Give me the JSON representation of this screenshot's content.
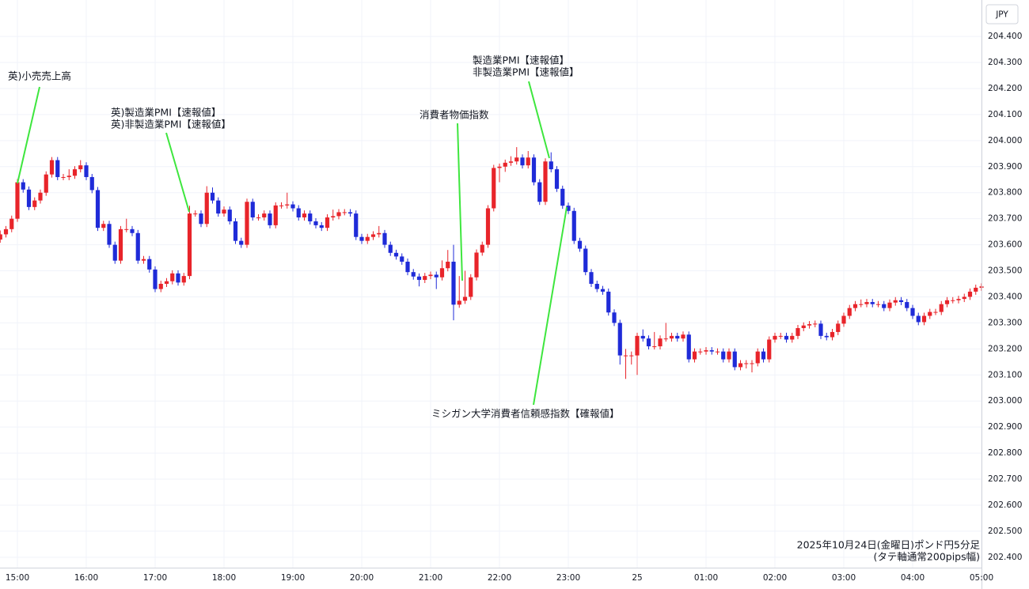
{
  "chart_data": {
    "type": "candlestick",
    "currency": "JPY",
    "note": [
      "2025年10月24日(金曜日)ポンド円5分足",
      "(タテ軸通常200pips幅)"
    ],
    "annotations": [
      [
        "英)小売売上高"
      ],
      [
        "英)製造業PMI【速報値】",
        "英)非製造業PMI【速報値】"
      ],
      [
        "消費者物価指数"
      ],
      [
        "製造業PMI【速報値】",
        "非製造業PMI【速報値】"
      ],
      [
        "ミシガン大学消費者信頼感指数【確報値】"
      ]
    ],
    "up_color": "#e8242a",
    "down_color": "#1f2bd8",
    "grid": true,
    "ylim": [
      202.36,
      204.54
    ],
    "yticks": [
      {
        "value": 202.4,
        "label": "202.400"
      },
      {
        "value": 202.5,
        "label": "202.500"
      },
      {
        "value": 202.6,
        "label": "202.600"
      },
      {
        "value": 202.7,
        "label": "202.700"
      },
      {
        "value": 202.8,
        "label": "202.800"
      },
      {
        "value": 202.9,
        "label": "202.900"
      },
      {
        "value": 203.0,
        "label": "203.000"
      },
      {
        "value": 203.1,
        "label": "203.100"
      },
      {
        "value": 203.2,
        "label": "203.200"
      },
      {
        "value": 203.3,
        "label": "203.300"
      },
      {
        "value": 203.4,
        "label": "203.400"
      },
      {
        "value": 203.5,
        "label": "203.500"
      },
      {
        "value": 203.6,
        "label": "203.600"
      },
      {
        "value": 203.7,
        "label": "203.700"
      },
      {
        "value": 203.8,
        "label": "203.800"
      },
      {
        "value": 203.9,
        "label": "203.900"
      },
      {
        "value": 204.0,
        "label": "204.000"
      },
      {
        "value": 204.1,
        "label": "204.100"
      },
      {
        "value": 204.2,
        "label": "204.200"
      },
      {
        "value": 204.3,
        "label": "204.300"
      },
      {
        "value": 204.4,
        "label": "204.400"
      }
    ],
    "categories": [
      null,
      null,
      null,
      "15:00",
      null,
      null,
      null,
      null,
      null,
      null,
      null,
      null,
      null,
      null,
      null,
      "16:00",
      null,
      null,
      null,
      null,
      null,
      null,
      null,
      null,
      null,
      null,
      null,
      "17:00",
      null,
      null,
      null,
      null,
      null,
      null,
      null,
      null,
      null,
      null,
      null,
      "18:00",
      null,
      null,
      null,
      null,
      null,
      null,
      null,
      null,
      null,
      null,
      null,
      "19:00",
      null,
      null,
      null,
      null,
      null,
      null,
      null,
      null,
      null,
      null,
      null,
      "20:00",
      null,
      null,
      null,
      null,
      null,
      null,
      null,
      null,
      null,
      null,
      null,
      "21:00",
      null,
      null,
      null,
      null,
      null,
      null,
      null,
      null,
      null,
      null,
      null,
      "22:00",
      null,
      null,
      null,
      null,
      null,
      null,
      null,
      null,
      null,
      null,
      null,
      "23:00",
      null,
      null,
      null,
      null,
      null,
      null,
      null,
      null,
      null,
      null,
      null,
      "25",
      null,
      null,
      null,
      null,
      null,
      null,
      null,
      null,
      null,
      null,
      null,
      "01:00",
      null,
      null,
      null,
      null,
      null,
      null,
      null,
      null,
      null,
      null,
      null,
      "02:00",
      null,
      null,
      null,
      null,
      null,
      null,
      null,
      null,
      null,
      null,
      null,
      "03:00",
      null,
      null,
      null,
      null,
      null,
      null,
      null,
      null,
      null,
      null,
      null,
      "04:00",
      null,
      null,
      null,
      null,
      null,
      null,
      null,
      null,
      null,
      null,
      null,
      "05:00"
    ],
    "values": [
      [
        203.62,
        203.655,
        203.608,
        203.64
      ],
      [
        203.64,
        203.672,
        203.628,
        203.66
      ],
      [
        203.66,
        203.712,
        203.648,
        203.7
      ],
      [
        203.7,
        203.852,
        203.688,
        203.84
      ],
      [
        203.84,
        203.852,
        203.8,
        203.812
      ],
      [
        203.812,
        203.824,
        203.733,
        203.745
      ],
      [
        203.745,
        203.782,
        203.733,
        203.77
      ],
      [
        203.77,
        203.812,
        203.758,
        203.8
      ],
      [
        203.8,
        203.882,
        203.788,
        203.87
      ],
      [
        203.87,
        203.937,
        203.858,
        203.925
      ],
      [
        203.925,
        203.937,
        203.848,
        203.86
      ],
      [
        203.86,
        203.872,
        203.848,
        203.86
      ],
      [
        203.86,
        203.89,
        203.848,
        203.865
      ],
      [
        203.865,
        203.902,
        203.853,
        203.89
      ],
      [
        203.89,
        203.925,
        203.878,
        203.905
      ],
      [
        203.905,
        203.917,
        203.848,
        203.86
      ],
      [
        203.86,
        203.872,
        203.798,
        203.81
      ],
      [
        203.81,
        203.822,
        203.653,
        203.665
      ],
      [
        203.665,
        203.692,
        203.653,
        203.68
      ],
      [
        203.68,
        203.692,
        203.588,
        203.6
      ],
      [
        203.6,
        203.612,
        203.527,
        203.539
      ],
      [
        203.539,
        203.672,
        203.527,
        203.66
      ],
      [
        203.66,
        203.7,
        203.648,
        203.66
      ],
      [
        203.66,
        203.672,
        203.633,
        203.645
      ],
      [
        203.645,
        203.657,
        203.527,
        203.539
      ],
      [
        203.539,
        203.557,
        203.527,
        203.545
      ],
      [
        203.545,
        203.557,
        203.493,
        203.505
      ],
      [
        203.505,
        203.517,
        203.418,
        203.43
      ],
      [
        203.43,
        203.462,
        203.418,
        203.45
      ],
      [
        203.45,
        203.472,
        203.438,
        203.46
      ],
      [
        203.46,
        203.502,
        203.448,
        203.49
      ],
      [
        203.49,
        203.502,
        203.443,
        203.455
      ],
      [
        203.455,
        203.492,
        203.443,
        203.48
      ],
      [
        203.48,
        203.75,
        203.468,
        203.72
      ],
      [
        203.72,
        203.732,
        203.708,
        203.72
      ],
      [
        203.72,
        203.732,
        203.668,
        203.68
      ],
      [
        203.68,
        203.825,
        203.668,
        203.8
      ],
      [
        203.8,
        203.82,
        203.758,
        203.77
      ],
      [
        203.77,
        203.782,
        203.708,
        203.72
      ],
      [
        203.72,
        203.747,
        203.708,
        203.735
      ],
      [
        203.735,
        203.747,
        203.678,
        203.69
      ],
      [
        203.69,
        203.702,
        203.603,
        203.615
      ],
      [
        203.615,
        203.627,
        203.588,
        203.6
      ],
      [
        203.6,
        203.777,
        203.588,
        203.765
      ],
      [
        203.765,
        203.777,
        203.693,
        203.705
      ],
      [
        203.705,
        203.717,
        203.693,
        203.705
      ],
      [
        203.705,
        203.732,
        203.693,
        203.72
      ],
      [
        203.72,
        203.732,
        203.663,
        203.675
      ],
      [
        203.675,
        203.763,
        203.663,
        203.751
      ],
      [
        203.751,
        203.763,
        203.739,
        203.751
      ],
      [
        203.751,
        203.8,
        203.739,
        203.755
      ],
      [
        203.755,
        203.767,
        203.728,
        203.74
      ],
      [
        203.74,
        203.752,
        203.693,
        203.705
      ],
      [
        203.705,
        203.732,
        203.693,
        203.72
      ],
      [
        203.72,
        203.732,
        203.678,
        203.69
      ],
      [
        203.69,
        203.702,
        203.663,
        203.675
      ],
      [
        203.675,
        203.687,
        203.653,
        203.665
      ],
      [
        203.665,
        203.717,
        203.653,
        203.705
      ],
      [
        203.705,
        203.735,
        203.693,
        203.71
      ],
      [
        203.71,
        203.737,
        203.698,
        203.725
      ],
      [
        203.725,
        203.737,
        203.713,
        203.725
      ],
      [
        203.725,
        203.737,
        203.708,
        203.72
      ],
      [
        203.72,
        203.732,
        203.618,
        203.63
      ],
      [
        203.63,
        203.642,
        203.603,
        203.615
      ],
      [
        203.615,
        203.642,
        203.603,
        203.63
      ],
      [
        203.63,
        203.652,
        203.618,
        203.64
      ],
      [
        203.64,
        203.672,
        203.628,
        203.645
      ],
      [
        203.645,
        203.657,
        203.588,
        203.6
      ],
      [
        203.6,
        203.612,
        203.557,
        203.569
      ],
      [
        203.569,
        203.581,
        203.543,
        203.555
      ],
      [
        203.555,
        203.567,
        203.523,
        203.535
      ],
      [
        203.535,
        203.547,
        203.483,
        203.495
      ],
      [
        203.495,
        203.507,
        203.466,
        203.478
      ],
      [
        203.478,
        203.49,
        203.44,
        203.465
      ],
      [
        203.465,
        203.492,
        203.453,
        203.48
      ],
      [
        203.48,
        203.497,
        203.468,
        203.485
      ],
      [
        203.485,
        203.497,
        203.43,
        203.475
      ],
      [
        203.475,
        203.54,
        203.463,
        203.51
      ],
      [
        203.51,
        203.58,
        203.498,
        203.535
      ],
      [
        203.535,
        203.6,
        203.31,
        203.37
      ],
      [
        203.37,
        203.48,
        203.358,
        203.385
      ],
      [
        203.385,
        203.5,
        203.373,
        203.4
      ],
      [
        203.4,
        203.487,
        203.388,
        203.475
      ],
      [
        203.475,
        203.582,
        203.463,
        203.57
      ],
      [
        203.57,
        203.612,
        203.558,
        203.6
      ],
      [
        203.6,
        203.752,
        203.588,
        203.74
      ],
      [
        203.74,
        203.907,
        203.728,
        203.895
      ],
      [
        203.895,
        203.912,
        203.84,
        203.9
      ],
      [
        203.9,
        203.927,
        203.88,
        203.915
      ],
      [
        203.915,
        203.94,
        203.903,
        203.92
      ],
      [
        203.92,
        203.975,
        203.908,
        203.935
      ],
      [
        203.935,
        203.947,
        203.893,
        203.905
      ],
      [
        203.905,
        203.96,
        203.893,
        203.935
      ],
      [
        203.935,
        203.947,
        203.828,
        203.84
      ],
      [
        203.84,
        203.852,
        203.753,
        203.765
      ],
      [
        203.765,
        203.932,
        203.753,
        203.92
      ],
      [
        203.92,
        203.955,
        203.878,
        203.89
      ],
      [
        203.89,
        203.902,
        203.803,
        203.815
      ],
      [
        203.815,
        203.827,
        203.738,
        203.75
      ],
      [
        203.75,
        203.762,
        203.718,
        203.73
      ],
      [
        203.73,
        203.742,
        203.603,
        203.615
      ],
      [
        203.615,
        203.627,
        203.573,
        203.585
      ],
      [
        203.585,
        203.597,
        203.483,
        203.495
      ],
      [
        203.495,
        203.507,
        203.438,
        203.45
      ],
      [
        203.45,
        203.462,
        203.418,
        203.43
      ],
      [
        203.43,
        203.442,
        203.408,
        203.42
      ],
      [
        203.42,
        203.432,
        203.328,
        203.34
      ],
      [
        203.34,
        203.352,
        203.288,
        203.3
      ],
      [
        203.3,
        203.312,
        203.14,
        203.175
      ],
      [
        203.175,
        203.2,
        203.085,
        203.175
      ],
      [
        203.175,
        203.19,
        203.14,
        203.175
      ],
      [
        203.175,
        203.262,
        203.1,
        203.25
      ],
      [
        203.25,
        203.275,
        203.228,
        203.24
      ],
      [
        203.24,
        203.252,
        203.198,
        203.21
      ],
      [
        203.21,
        203.265,
        203.198,
        203.21
      ],
      [
        203.21,
        203.252,
        203.198,
        203.24
      ],
      [
        203.24,
        203.3,
        203.228,
        203.24
      ],
      [
        203.24,
        203.262,
        203.228,
        203.25
      ],
      [
        203.25,
        203.262,
        203.228,
        203.24
      ],
      [
        203.24,
        203.267,
        203.228,
        203.255
      ],
      [
        203.255,
        203.267,
        203.148,
        203.16
      ],
      [
        203.16,
        203.202,
        203.148,
        203.19
      ],
      [
        203.19,
        203.202,
        203.178,
        203.19
      ],
      [
        203.19,
        203.207,
        203.178,
        203.195
      ],
      [
        203.195,
        203.207,
        203.178,
        203.19
      ],
      [
        203.19,
        203.202,
        203.178,
        203.19
      ],
      [
        203.19,
        203.202,
        203.148,
        203.16
      ],
      [
        203.16,
        203.202,
        203.148,
        203.19
      ],
      [
        203.19,
        203.202,
        203.118,
        203.13
      ],
      [
        203.13,
        203.157,
        203.118,
        203.145
      ],
      [
        203.145,
        203.157,
        203.125,
        203.145
      ],
      [
        203.145,
        203.157,
        203.11,
        203.145
      ],
      [
        203.145,
        203.202,
        203.133,
        203.19
      ],
      [
        203.19,
        203.202,
        203.148,
        203.16
      ],
      [
        203.16,
        203.248,
        203.148,
        203.236
      ],
      [
        203.236,
        203.262,
        203.224,
        203.25
      ],
      [
        203.25,
        203.262,
        203.238,
        203.25
      ],
      [
        203.25,
        203.262,
        203.224,
        203.236
      ],
      [
        203.236,
        203.262,
        203.224,
        203.25
      ],
      [
        203.25,
        203.292,
        203.238,
        203.28
      ],
      [
        203.28,
        203.302,
        203.268,
        203.29
      ],
      [
        203.29,
        203.307,
        203.278,
        203.295
      ],
      [
        203.295,
        203.309,
        203.283,
        203.297
      ],
      [
        203.297,
        203.309,
        203.238,
        203.25
      ],
      [
        203.25,
        203.262,
        203.233,
        203.245
      ],
      [
        203.245,
        203.277,
        203.233,
        203.265
      ],
      [
        203.265,
        203.309,
        203.253,
        203.297
      ],
      [
        203.297,
        203.339,
        203.285,
        203.327
      ],
      [
        203.327,
        203.369,
        203.315,
        203.357
      ],
      [
        203.357,
        203.384,
        203.345,
        203.372
      ],
      [
        203.372,
        203.39,
        203.36,
        203.372
      ],
      [
        203.372,
        203.392,
        203.36,
        203.38
      ],
      [
        203.38,
        203.392,
        203.36,
        203.372
      ],
      [
        203.372,
        203.384,
        203.36,
        203.372
      ],
      [
        203.372,
        203.384,
        203.345,
        203.357
      ],
      [
        203.357,
        203.39,
        203.345,
        203.378
      ],
      [
        203.378,
        203.399,
        203.366,
        203.387
      ],
      [
        203.387,
        203.399,
        203.368,
        203.38
      ],
      [
        203.38,
        203.392,
        203.345,
        203.357
      ],
      [
        203.357,
        203.369,
        203.315,
        203.327
      ],
      [
        203.327,
        203.339,
        203.291,
        203.303
      ],
      [
        203.303,
        203.339,
        203.291,
        203.327
      ],
      [
        203.327,
        203.354,
        203.315,
        203.342
      ],
      [
        203.342,
        203.354,
        203.33,
        203.342
      ],
      [
        203.342,
        203.384,
        203.33,
        203.372
      ],
      [
        203.372,
        203.399,
        203.36,
        203.387
      ],
      [
        203.387,
        203.399,
        203.375,
        203.387
      ],
      [
        203.387,
        203.404,
        203.375,
        203.392
      ],
      [
        203.392,
        203.412,
        203.38,
        203.4
      ],
      [
        203.4,
        203.432,
        203.388,
        203.42
      ],
      [
        203.42,
        203.447,
        203.408,
        203.435
      ],
      [
        203.435,
        203.452,
        203.423,
        203.44
      ]
    ]
  }
}
